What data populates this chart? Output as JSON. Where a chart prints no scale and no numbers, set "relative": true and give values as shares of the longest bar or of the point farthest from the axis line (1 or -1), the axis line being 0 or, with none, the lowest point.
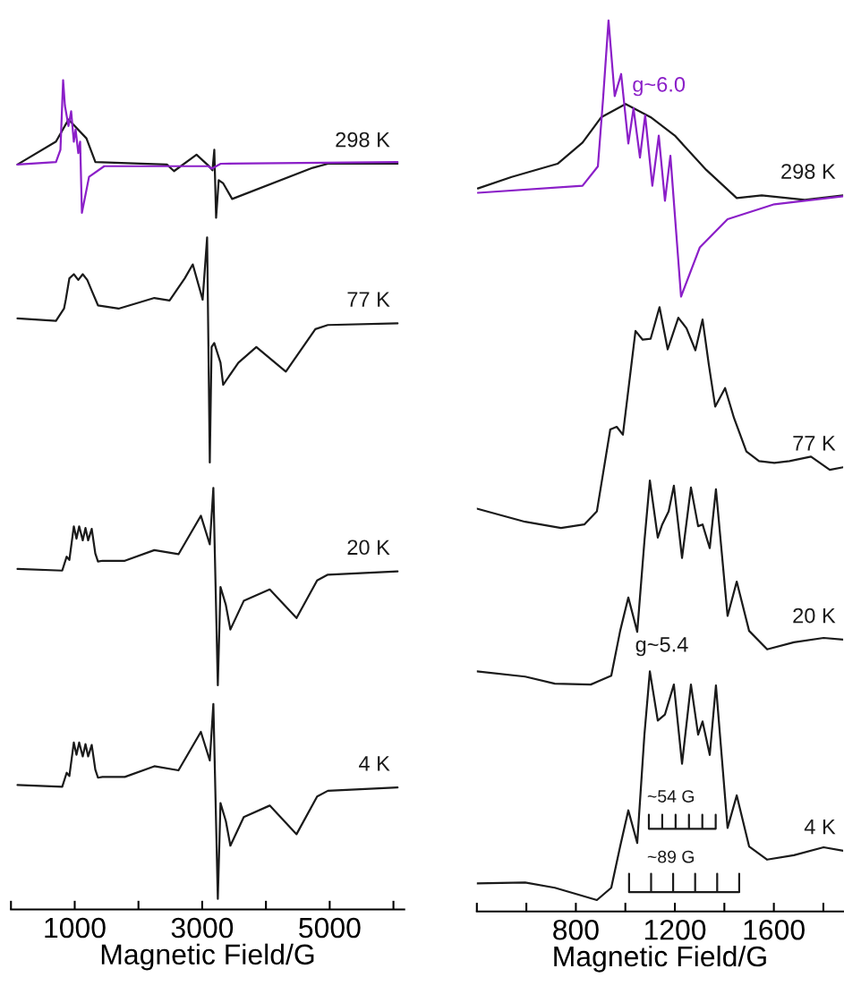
{
  "chart_data": [
    {
      "type": "line",
      "relative": true,
      "xlabel": "Magnetic Field/G",
      "xlim": [
        0,
        6170
      ],
      "xticks": [
        {
          "value": 0,
          "label": null
        },
        1000,
        {
          "value": 2000,
          "label": null
        },
        3000,
        {
          "value": 4000,
          "label": null
        },
        5000,
        {
          "value": 6000,
          "label": null
        }
      ],
      "series": [
        {
          "name": "298 K",
          "color": "#1a1a1a",
          "x": [
            102,
            706,
            902,
            1184,
            1324,
            2446,
            2558,
            2911,
            3094,
            3161,
            3190,
            3218,
            3259,
            3330,
            3470,
            4733,
            4972,
            6065
          ],
          "values": [
            0.897,
            0.925,
            0.952,
            0.929,
            0.9,
            0.897,
            0.889,
            0.909,
            0.896,
            0.89,
            0.915,
            0.832,
            0.878,
            0.874,
            0.855,
            0.893,
            0.898,
            0.898
          ]
        },
        {
          "color": "#8b1fc8",
          "x": [
            102,
            706,
            776,
            818,
            846,
            902,
            944,
            986,
            1014,
            1056,
            1085,
            1113,
            1225,
            1463,
            2630,
            3094,
            3150,
            3290,
            6065
          ],
          "values": [
            0.897,
            0.9,
            0.915,
            1.0,
            0.969,
            0.944,
            0.962,
            0.925,
            0.94,
            0.911,
            0.925,
            0.838,
            0.882,
            0.895,
            0.895,
            0.895,
            0.892,
            0.898,
            0.9
          ]
        },
        {
          "name": "77 K",
          "color": "#1a1a1a",
          "x": [
            102,
            706,
            832,
            860,
            916,
            986,
            1056,
            1126,
            1197,
            1267,
            1365,
            1688,
            2249,
            2488,
            2726,
            2852,
            3007,
            3077,
            3119,
            3147,
            3189,
            3287,
            3329,
            3568,
            3849,
            4312,
            4775,
            4971,
            6065
          ],
          "values": [
            0.709,
            0.706,
            0.721,
            0.732,
            0.758,
            0.763,
            0.756,
            0.763,
            0.756,
            0.743,
            0.725,
            0.721,
            0.734,
            0.731,
            0.758,
            0.775,
            0.732,
            0.808,
            0.533,
            0.674,
            0.679,
            0.655,
            0.628,
            0.655,
            0.674,
            0.644,
            0.696,
            0.701,
            0.703
          ]
        },
        {
          "name": "20 K",
          "color": "#1a1a1a",
          "x": [
            102,
            804,
            874,
            916,
            986,
            1028,
            1070,
            1126,
            1169,
            1211,
            1267,
            1323,
            1365,
            1435,
            1786,
            2249,
            2628,
            2979,
            3119,
            3175,
            3245,
            3287,
            3371,
            3442,
            3652,
            4059,
            4480,
            4803,
            4971,
            6065
          ],
          "values": [
            0.403,
            0.401,
            0.418,
            0.414,
            0.455,
            0.44,
            0.455,
            0.438,
            0.453,
            0.438,
            0.452,
            0.422,
            0.412,
            0.413,
            0.413,
            0.426,
            0.421,
            0.468,
            0.433,
            0.502,
            0.261,
            0.381,
            0.359,
            0.329,
            0.364,
            0.378,
            0.343,
            0.389,
            0.396,
            0.4
          ]
        },
        {
          "name": "4 K",
          "color": "#1a1a1a",
          "x": [
            102,
            804,
            874,
            916,
            986,
            1028,
            1070,
            1126,
            1169,
            1211,
            1267,
            1323,
            1365,
            1435,
            1786,
            2249,
            2628,
            2979,
            3119,
            3175,
            3245,
            3287,
            3371,
            3442,
            3652,
            4059,
            4480,
            4803,
            4971,
            6065
          ],
          "values": [
            0.139,
            0.137,
            0.154,
            0.15,
            0.191,
            0.176,
            0.191,
            0.174,
            0.189,
            0.174,
            0.188,
            0.158,
            0.148,
            0.149,
            0.149,
            0.162,
            0.157,
            0.204,
            0.169,
            0.238,
            0.0,
            0.117,
            0.095,
            0.065,
            0.1,
            0.114,
            0.079,
            0.125,
            0.132,
            0.136
          ]
        }
      ]
    },
    {
      "type": "line",
      "relative": true,
      "xlabel": "Magnetic Field/G",
      "xlim": [
        400,
        1880
      ],
      "xticks": [
        {
          "value": 400,
          "label": null
        },
        {
          "value": 600,
          "label": null
        },
        800,
        {
          "value": 1000,
          "label": null
        },
        1200,
        {
          "value": 1400,
          "label": null
        },
        1600,
        {
          "value": 1800,
          "label": null
        }
      ],
      "series": [
        {
          "name": "298 K",
          "color": "#1a1a1a",
          "x": [
            404,
            541,
            726,
            827,
            903,
            1001,
            1102,
            1200,
            1327,
            1450,
            1551,
            1725,
            1880
          ],
          "values": [
            0.809,
            0.822,
            0.837,
            0.861,
            0.89,
            0.905,
            0.89,
            0.869,
            0.83,
            0.798,
            0.801,
            0.796,
            0.801
          ]
        },
        {
          "color": "#8b1fc8",
          "x": [
            404,
            827,
            889,
            910,
            932,
            957,
            983,
            1012,
            1033,
            1059,
            1080,
            1109,
            1135,
            1160,
            1182,
            1225,
            1301,
            1413,
            1602,
            1880
          ],
          "values": [
            0.804,
            0.812,
            0.834,
            0.911,
            1.0,
            0.914,
            0.939,
            0.86,
            0.9,
            0.844,
            0.892,
            0.812,
            0.869,
            0.795,
            0.846,
            0.686,
            0.742,
            0.774,
            0.791,
            0.8
          ]
        },
        {
          "name": "77 K",
          "color": "#1a1a1a",
          "x": [
            400,
            595,
            740,
            834,
            885,
            939,
            965,
            990,
            1041,
            1070,
            1102,
            1138,
            1171,
            1214,
            1247,
            1283,
            1312,
            1337,
            1363,
            1403,
            1439,
            1489,
            1540,
            1602,
            1663,
            1750,
            1826,
            1880
          ],
          "values": [
            0.445,
            0.43,
            0.423,
            0.427,
            0.442,
            0.535,
            0.538,
            0.529,
            0.647,
            0.637,
            0.638,
            0.674,
            0.626,
            0.662,
            0.65,
            0.625,
            0.66,
            0.609,
            0.561,
            0.582,
            0.548,
            0.51,
            0.499,
            0.497,
            0.499,
            0.504,
            0.489,
            0.492
          ]
        },
        {
          "name": "20 K",
          "color": "#1a1a1a",
          "x": [
            400,
            595,
            715,
            860,
            943,
            979,
            1012,
            1048,
            1077,
            1099,
            1131,
            1149,
            1175,
            1196,
            1229,
            1265,
            1294,
            1312,
            1341,
            1366,
            1413,
            1450,
            1500,
            1573,
            1681,
            1801,
            1880
          ],
          "values": [
            0.26,
            0.254,
            0.246,
            0.245,
            0.255,
            0.306,
            0.344,
            0.305,
            0.408,
            0.477,
            0.412,
            0.427,
            0.442,
            0.471,
            0.389,
            0.469,
            0.425,
            0.427,
            0.4,
            0.467,
            0.323,
            0.362,
            0.306,
            0.285,
            0.293,
            0.298,
            0.296
          ]
        },
        {
          "name": "4 K",
          "color": "#1a1a1a",
          "x": [
            400,
            595,
            715,
            885,
            943,
            979,
            1012,
            1048,
            1077,
            1099,
            1131,
            1160,
            1196,
            1229,
            1265,
            1294,
            1312,
            1341,
            1366,
            1413,
            1450,
            1500,
            1573,
            1681,
            1801,
            1880
          ],
          "values": [
            0.019,
            0.02,
            0.014,
            0.0,
            0.014,
            0.061,
            0.102,
            0.065,
            0.188,
            0.26,
            0.204,
            0.211,
            0.245,
            0.155,
            0.245,
            0.188,
            0.203,
            0.165,
            0.244,
            0.082,
            0.119,
            0.061,
            0.046,
            0.051,
            0.06,
            0.056
          ]
        },
        {
          "color": "#1a1a1a",
          "x": [
            1095,
            1095,
            1149,
            1149,
            1149,
            1203,
            1203,
            1203,
            1257,
            1257,
            1257,
            1311,
            1311,
            1311,
            1365,
            1365
          ],
          "values": [
            0.097,
            0.081,
            0.081,
            0.097,
            0.081,
            0.081,
            0.097,
            0.081,
            0.081,
            0.097,
            0.081,
            0.081,
            0.097,
            0.081,
            0.081,
            0.097
          ]
        },
        {
          "color": "#1a1a1a",
          "x": [
            1015,
            1015,
            1104,
            1104,
            1104,
            1193,
            1193,
            1193,
            1282,
            1282,
            1282,
            1371,
            1371,
            1371,
            1460,
            1460
          ],
          "values": [
            0.03,
            0.009,
            0.009,
            0.03,
            0.009,
            0.009,
            0.03,
            0.009,
            0.009,
            0.03,
            0.009,
            0.009,
            0.03,
            0.009,
            0.009,
            0.03
          ]
        }
      ],
      "annotations": [
        {
          "text": "g~6.0",
          "x": 957,
          "y": 0.914
        },
        "g~5.4",
        "~54 G",
        "~89 G"
      ]
    }
  ]
}
